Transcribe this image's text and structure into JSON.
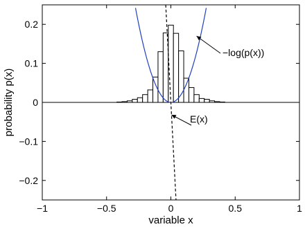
{
  "chart_data": {
    "type": "bar",
    "xlabel": "variable x",
    "ylabel": "probability p(x)",
    "xlim": [
      -1,
      1
    ],
    "ylim": [
      -0.25,
      0.25
    ],
    "x_ticks": [
      -1,
      -0.5,
      0,
      0.5,
      1
    ],
    "x_tick_labels": [
      "−1",
      "−0.5",
      "0",
      "0.5",
      "1"
    ],
    "y_ticks": [
      -0.2,
      -0.1,
      0,
      0.1,
      0.2
    ],
    "y_tick_labels": [
      "−0.2",
      "−0.1",
      "0",
      "0.1",
      "0.2"
    ],
    "grid": false,
    "histogram": {
      "bin_width": 0.04,
      "x": [
        -0.4,
        -0.36,
        -0.32,
        -0.28,
        -0.24,
        -0.2,
        -0.16,
        -0.12,
        -0.08,
        -0.04,
        0,
        0.04,
        0.08,
        0.12,
        0.16,
        0.2,
        0.24,
        0.28,
        0.32,
        0.36,
        0.4
      ],
      "values": [
        0.001,
        0.002,
        0.004,
        0.008,
        0.012,
        0.02,
        0.032,
        0.065,
        0.13,
        0.178,
        0.198,
        0.177,
        0.132,
        0.062,
        0.038,
        0.02,
        0.01,
        0.008,
        0.004,
        0.002,
        0.001
      ]
    },
    "curve": {
      "label": "−log(p(x))",
      "color": "#1f3fbf",
      "function": "y = 3.2 * x^2"
    },
    "dashed_line": {
      "label": "E(x)",
      "points": [
        [
          -0.04,
          0.25
        ],
        [
          0.04,
          -0.25
        ]
      ]
    },
    "annotations": [
      {
        "text": "−log(p(x))",
        "points_to": [
          0.2,
          0.17
        ]
      },
      {
        "text": "E(x)",
        "points_to": [
          0.005,
          -0.032
        ]
      }
    ]
  }
}
